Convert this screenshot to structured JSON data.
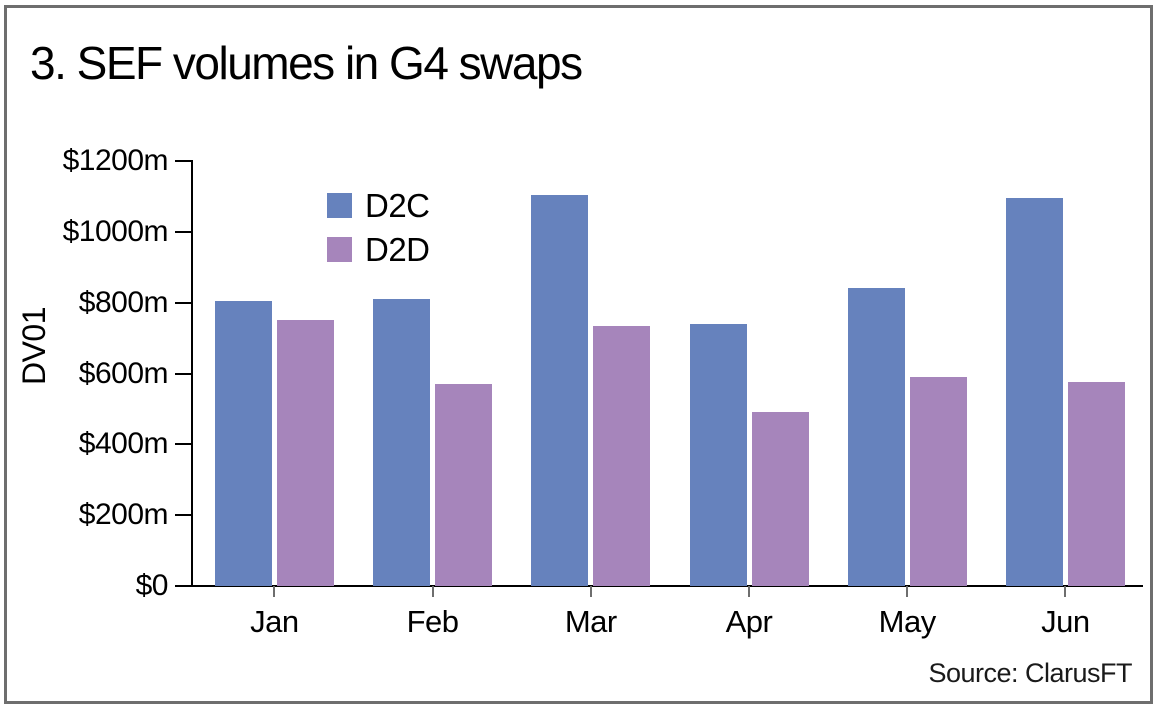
{
  "title": "3. SEF volumes in G4 swaps",
  "source_label": "Source: ClarusFT",
  "chart_data": {
    "type": "bar",
    "title": "3. SEF volumes in G4 swaps",
    "categories": [
      "Jan",
      "Feb",
      "Mar",
      "Apr",
      "May",
      "Jun"
    ],
    "series": [
      {
        "name": "D2C",
        "color": "#6682bd",
        "values": [
          805,
          810,
          1105,
          740,
          840,
          1095
        ]
      },
      {
        "name": "D2D",
        "color": "#a685bb",
        "values": [
          750,
          570,
          735,
          490,
          590,
          575
        ]
      }
    ],
    "xlabel": "",
    "ylabel": "DV01",
    "ylim": [
      0,
      1200
    ],
    "y_ticks": [
      {
        "value": 0,
        "label": "$0"
      },
      {
        "value": 200,
        "label": "$200m"
      },
      {
        "value": 400,
        "label": "$400m"
      },
      {
        "value": 600,
        "label": "$600m"
      },
      {
        "value": 800,
        "label": "$800m"
      },
      {
        "value": 1000,
        "label": "$1000m"
      },
      {
        "value": 1200,
        "label": "$1200m"
      }
    ],
    "grid": false,
    "legend_position": "top-left-inside"
  },
  "colors": {
    "frame_border": "#6e6e6e",
    "axis": "#000000",
    "d2c": "#6682bd",
    "d2d": "#a685bb"
  }
}
